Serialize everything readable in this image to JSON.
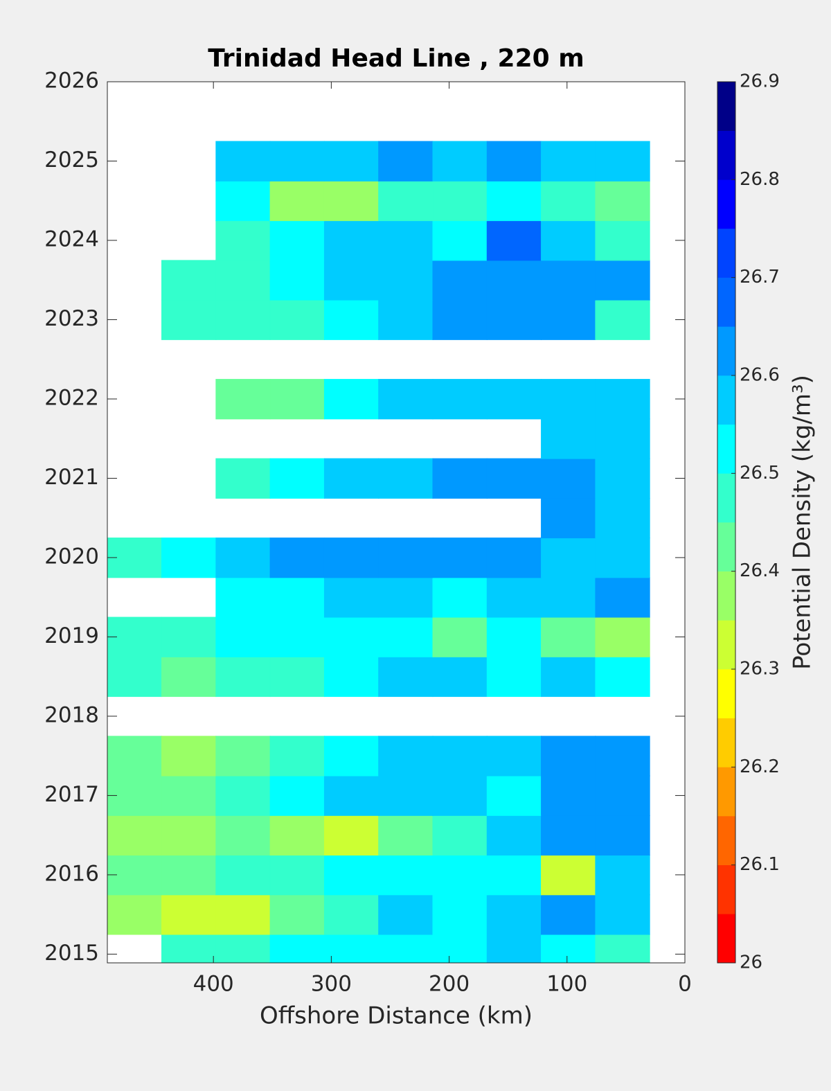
{
  "chart_data": {
    "type": "contour",
    "title": "Trinidad Head Line , 220 m",
    "x_label": "Offshore Distance (km)",
    "colorbar_label": "Potential Density (kg/m³)",
    "xlim": [
      490,
      0
    ],
    "ylim": [
      2014.89,
      2026
    ],
    "xticks": [
      400,
      300,
      200,
      100,
      0
    ],
    "yticks": [
      2015,
      2016,
      2017,
      2018,
      2019,
      2020,
      2021,
      2022,
      2023,
      2024,
      2025,
      2026
    ],
    "x": [
      467,
      421,
      375,
      329,
      283,
      237,
      191,
      145,
      99,
      53
    ],
    "y": [
      2015.0,
      2015.5,
      2016.0,
      2016.5,
      2017.0,
      2017.5,
      2018.0,
      2018.5,
      2019.0,
      2019.5,
      2020.0,
      2020.5,
      2021.0,
      2021.5,
      2022.0,
      2022.5,
      2023.0,
      2023.5,
      2024.0,
      2024.5,
      2025.0
    ],
    "z": [
      [
        null,
        26.45,
        26.45,
        26.5,
        26.5,
        26.5,
        26.5,
        26.55,
        26.5,
        26.45
      ],
      [
        26.35,
        26.3,
        26.32,
        26.4,
        26.45,
        26.55,
        26.5,
        26.55,
        26.6,
        26.55
      ],
      [
        26.42,
        26.4,
        26.45,
        26.45,
        26.5,
        26.5,
        26.5,
        26.5,
        26.3,
        26.55
      ],
      [
        26.38,
        26.35,
        26.4,
        26.35,
        26.3,
        26.4,
        26.45,
        26.55,
        26.62,
        26.62
      ],
      [
        26.42,
        26.4,
        26.45,
        26.5,
        26.55,
        26.58,
        26.55,
        26.5,
        26.6,
        26.6
      ],
      [
        26.4,
        26.38,
        26.42,
        26.45,
        26.5,
        26.55,
        26.58,
        26.58,
        26.62,
        26.6
      ],
      [
        null,
        null,
        null,
        null,
        null,
        null,
        null,
        null,
        null,
        null
      ],
      [
        26.45,
        26.42,
        26.45,
        26.48,
        26.5,
        26.55,
        26.58,
        26.5,
        26.55,
        26.5
      ],
      [
        26.48,
        26.45,
        26.5,
        26.5,
        26.52,
        26.5,
        26.4,
        26.52,
        26.42,
        26.38
      ],
      [
        null,
        null,
        26.5,
        26.5,
        26.55,
        26.55,
        26.52,
        26.55,
        26.55,
        26.6
      ],
      [
        26.48,
        26.52,
        26.58,
        26.6,
        26.62,
        26.62,
        26.6,
        26.6,
        26.58,
        26.58
      ],
      [
        null,
        null,
        null,
        null,
        null,
        null,
        null,
        null,
        26.6,
        26.58
      ],
      [
        null,
        null,
        26.45,
        26.5,
        26.55,
        26.58,
        26.6,
        26.62,
        26.6,
        26.55
      ],
      [
        null,
        null,
        null,
        null,
        null,
        null,
        null,
        null,
        26.58,
        26.58
      ],
      [
        null,
        null,
        26.4,
        26.42,
        26.5,
        26.55,
        26.55,
        26.58,
        26.58,
        26.55
      ],
      [
        null,
        null,
        null,
        null,
        null,
        null,
        null,
        null,
        null,
        null
      ],
      [
        null,
        26.45,
        26.45,
        26.48,
        26.52,
        26.55,
        26.6,
        26.62,
        26.6,
        26.45
      ],
      [
        null,
        26.48,
        26.48,
        26.5,
        26.55,
        26.58,
        26.6,
        26.62,
        26.62,
        26.62
      ],
      [
        null,
        null,
        26.45,
        26.52,
        26.55,
        26.55,
        26.5,
        26.68,
        26.55,
        26.45
      ],
      [
        null,
        null,
        26.5,
        26.38,
        26.35,
        26.45,
        26.45,
        26.5,
        26.45,
        26.4
      ],
      [
        null,
        null,
        26.55,
        26.55,
        26.55,
        26.6,
        26.58,
        26.6,
        26.58,
        26.55
      ]
    ],
    "levels": [
      26.0,
      26.05,
      26.1,
      26.15,
      26.2,
      26.25,
      26.3,
      26.35,
      26.4,
      26.45,
      26.5,
      26.55,
      26.6,
      26.65,
      26.7,
      26.75,
      26.8,
      26.85,
      26.9
    ],
    "colormap": [
      "#ff0000",
      "#ff3300",
      "#ff6600",
      "#ff9900",
      "#ffcc00",
      "#ffff00",
      "#ccff33",
      "#99ff66",
      "#66ff99",
      "#33ffcc",
      "#00ffff",
      "#00ccff",
      "#0099ff",
      "#0066ff",
      "#0044ff",
      "#0000ff",
      "#0000cc",
      "#000088"
    ],
    "colorbar_ticks": [
      26,
      26.1,
      26.2,
      26.3,
      26.4,
      26.5,
      26.6,
      26.7,
      26.8,
      26.9
    ]
  }
}
